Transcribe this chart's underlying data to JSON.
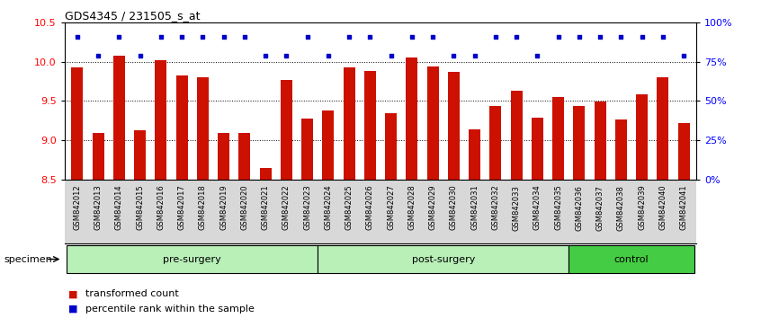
{
  "title": "GDS4345 / 231505_s_at",
  "samples": [
    "GSM842012",
    "GSM842013",
    "GSM842014",
    "GSM842015",
    "GSM842016",
    "GSM842017",
    "GSM842018",
    "GSM842019",
    "GSM842020",
    "GSM842021",
    "GSM842022",
    "GSM842023",
    "GSM842024",
    "GSM842025",
    "GSM842026",
    "GSM842027",
    "GSM842028",
    "GSM842029",
    "GSM842030",
    "GSM842031",
    "GSM842032",
    "GSM842033",
    "GSM842034",
    "GSM842035",
    "GSM842036",
    "GSM842037",
    "GSM842038",
    "GSM842039",
    "GSM842040",
    "GSM842041"
  ],
  "bar_values": [
    9.93,
    9.09,
    10.08,
    9.13,
    10.02,
    9.82,
    9.8,
    9.09,
    9.09,
    8.65,
    9.77,
    9.28,
    9.38,
    9.93,
    9.88,
    9.35,
    10.05,
    9.94,
    9.87,
    9.14,
    9.44,
    9.63,
    9.29,
    9.55,
    9.44,
    9.49,
    9.27,
    9.58,
    9.8,
    9.22
  ],
  "percentile_values": [
    91,
    79,
    91,
    79,
    91,
    91,
    91,
    91,
    91,
    79,
    79,
    91,
    79,
    91,
    91,
    79,
    91,
    91,
    79,
    79,
    91,
    91,
    79,
    91,
    91,
    91,
    91,
    91,
    91,
    79
  ],
  "groups": [
    {
      "label": "pre-surgery",
      "start": 0,
      "end": 12
    },
    {
      "label": "post-surgery",
      "start": 12,
      "end": 24
    },
    {
      "label": "control",
      "start": 24,
      "end": 30
    }
  ],
  "group_colors": [
    "#b8f0b8",
    "#b8f0b8",
    "#44cc44"
  ],
  "bar_color": "#CC1100",
  "dot_color": "#0000CC",
  "ylim_left": [
    8.5,
    10.5
  ],
  "yticks_left": [
    8.5,
    9.0,
    9.5,
    10.0,
    10.5
  ],
  "ytick_labels_right": [
    "0%",
    "25%",
    "50%",
    "75%",
    "100%"
  ],
  "yticks_right": [
    0,
    25,
    50,
    75,
    100
  ],
  "legend_items": [
    {
      "label": "transformed count",
      "color": "#CC1100"
    },
    {
      "label": "percentile rank within the sample",
      "color": "#0000CC"
    }
  ],
  "specimen_label": "specimen",
  "xtick_bg": "#d8d8d8",
  "plot_bg": "#ffffff"
}
